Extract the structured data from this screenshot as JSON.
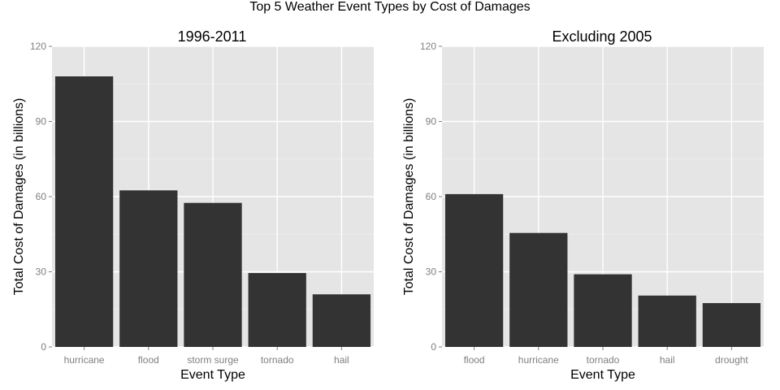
{
  "figure": {
    "title": "Top 5 Weather Event Types by Cost of Damages"
  },
  "colors": {
    "panel_bg": "#e5e5e5",
    "grid": "#ffffff",
    "bar": "#333333",
    "tick_text": "#7f7f7f"
  },
  "chart_data": [
    {
      "type": "bar",
      "title": "1996-2011",
      "xlabel": "Event Type",
      "ylabel": "Total Cost of Damages (in billions)",
      "categories": [
        "hurricane",
        "flood",
        "storm surge",
        "tornado",
        "hail"
      ],
      "values": [
        108,
        62.5,
        57.5,
        29.5,
        21
      ],
      "ylim": [
        0,
        120
      ],
      "yticks": [
        "0",
        "30",
        "60",
        "90",
        "120"
      ],
      "grid": true,
      "legend": "none"
    },
    {
      "type": "bar",
      "title": "Excluding 2005",
      "xlabel": "Event Type",
      "ylabel": "Total Cost of Damages (in billions)",
      "categories": [
        "flood",
        "hurricane",
        "tornado",
        "hail",
        "drought"
      ],
      "values": [
        61,
        45.5,
        29,
        20.5,
        17.5
      ],
      "ylim": [
        0,
        120
      ],
      "yticks": [
        "0",
        "30",
        "60",
        "90",
        "120"
      ],
      "grid": true,
      "legend": "none"
    }
  ]
}
